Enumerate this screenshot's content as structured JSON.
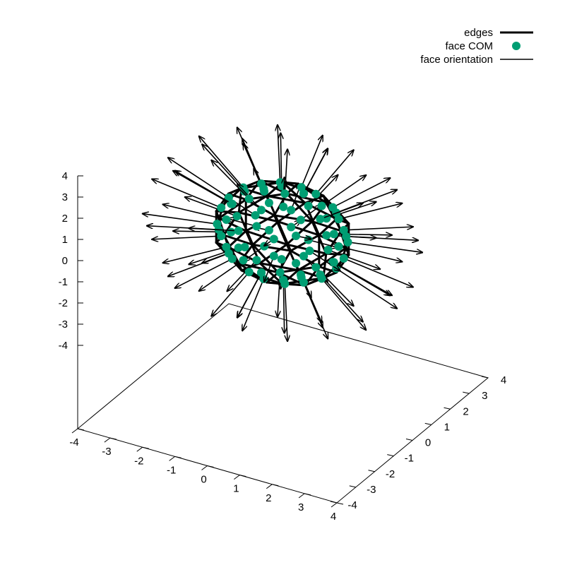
{
  "chart_data": {
    "type": "scatter",
    "title": "",
    "legend": {
      "placement": "top-right",
      "entries": [
        {
          "label": "edges",
          "symbol": "line",
          "width": "thick",
          "color": "#000000"
        },
        {
          "label": "face COM",
          "symbol": "point",
          "color": "#009e73"
        },
        {
          "label": "face orientation",
          "symbol": "line",
          "width": "thin",
          "color": "#000000"
        }
      ]
    },
    "axes": {
      "x": {
        "range": [
          -4,
          4
        ],
        "ticks": [
          -4,
          -3,
          -2,
          -1,
          0,
          1,
          2,
          3,
          4
        ],
        "tick_labels": [
          "-4",
          "-3",
          "-2",
          "-1",
          "0",
          "1",
          "2",
          "3",
          "4"
        ]
      },
      "y": {
        "range": [
          -4,
          4
        ],
        "ticks": [
          -4,
          -3,
          -2,
          -1,
          0,
          1,
          2,
          3,
          4
        ],
        "tick_labels": [
          "-4",
          "-3",
          "-2",
          "-1",
          "0",
          "1",
          "2",
          "3",
          "4"
        ]
      },
      "z": {
        "range": [
          -4,
          4
        ],
        "ticks": [
          -4,
          -3,
          -2,
          -1,
          0,
          1,
          2,
          3,
          4
        ],
        "tick_labels": [
          "-4",
          "-3",
          "-2",
          "-1",
          "0",
          "1",
          "2",
          "3",
          "4"
        ]
      }
    },
    "mesh": {
      "shape": "geodesic sphere",
      "center": [
        0,
        0,
        1.0
      ],
      "radius": 1.5,
      "face_count": 80,
      "normal_arrow_length": 1.6
    },
    "colors": {
      "edges": "#000000",
      "face_com": "#009e73",
      "face_orientation": "#000000"
    }
  }
}
